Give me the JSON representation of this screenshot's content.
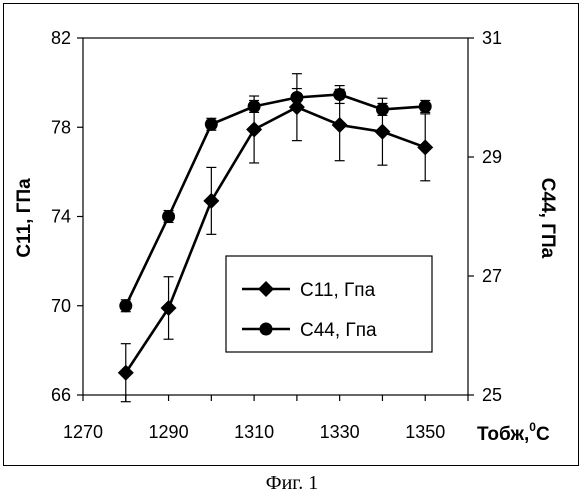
{
  "caption": "Фиг. 1",
  "chart_data": {
    "type": "line",
    "xlabel": "Тобж,",
    "xlabel_unit": "0C",
    "ylabel": "C11, ГПа",
    "y2label": "C44, ГПа",
    "xlim": [
      1270,
      1360
    ],
    "xticks": [
      1270,
      1290,
      1310,
      1330,
      1350
    ],
    "ylim": [
      66,
      82
    ],
    "yticks": [
      66,
      70,
      74,
      78,
      82
    ],
    "y2lim": [
      25,
      31
    ],
    "y2ticks": [
      25,
      27,
      29,
      31
    ],
    "grid": false,
    "legend_position": "center-right",
    "colors": {
      "line": "#000000",
      "background": "#ffffff"
    },
    "x": [
      1280,
      1290,
      1300,
      1310,
      1320,
      1330,
      1340,
      1350
    ],
    "series": [
      {
        "name": "C11, Гпа",
        "axis": "left",
        "marker": "diamond",
        "values": [
          67.0,
          69.9,
          74.7,
          77.9,
          78.9,
          78.1,
          77.8,
          77.1
        ],
        "errors": [
          1.3,
          1.4,
          1.5,
          1.5,
          1.5,
          1.6,
          1.5,
          1.5
        ]
      },
      {
        "name": "C44, Гпа",
        "axis": "right",
        "marker": "circle",
        "values": [
          26.5,
          28.0,
          29.55,
          29.85,
          30.0,
          30.05,
          29.8,
          29.85
        ],
        "errors": [
          0.1,
          0.1,
          0.1,
          0.1,
          0.15,
          0.15,
          0.1,
          0.1
        ]
      }
    ]
  }
}
